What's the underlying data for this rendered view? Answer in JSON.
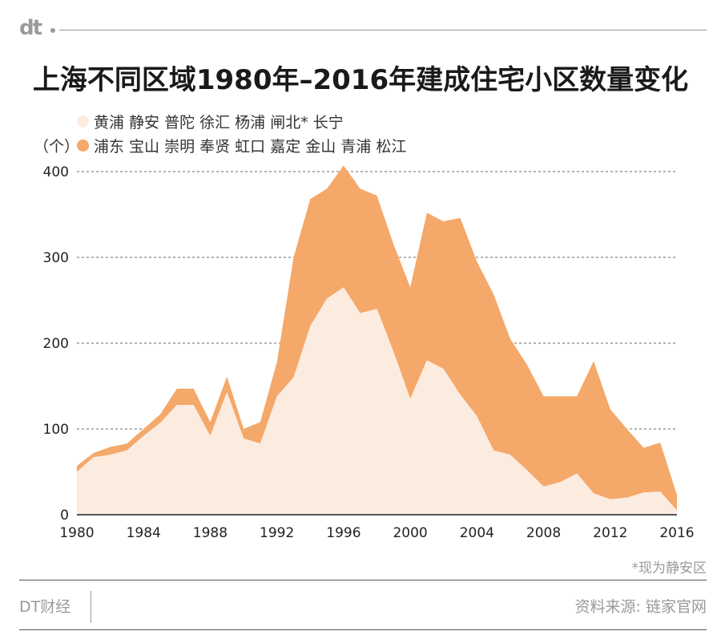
{
  "brand_logo": "dt",
  "title": "上海不同区域1980年–2016年建成住宅小区数量变化",
  "unit": "（个）",
  "footnote": "*现为静安区",
  "brand": "DT财经",
  "source": "资料来源: 链家官网",
  "colors": {
    "series1": "#fcebdf",
    "series2": "#f4a869",
    "grid": "#666666",
    "axis": "#222222"
  },
  "chart_data": {
    "type": "area",
    "stacked": true,
    "grid": "dashed-horizontal",
    "x": [
      1980,
      1981,
      1982,
      1983,
      1984,
      1985,
      1986,
      1987,
      1988,
      1989,
      1990,
      1991,
      1992,
      1993,
      1994,
      1995,
      1996,
      1997,
      1998,
      1999,
      2000,
      2001,
      2002,
      2003,
      2004,
      2005,
      2006,
      2007,
      2008,
      2009,
      2010,
      2011,
      2012,
      2013,
      2014,
      2015,
      2016
    ],
    "xlim": [
      1980,
      2016
    ],
    "xticks": [
      "1980",
      "1984",
      "1988",
      "1992",
      "1996",
      "2000",
      "2004",
      "2008",
      "2012",
      "2016"
    ],
    "ylim": [
      0,
      400
    ],
    "yticks": [
      "0",
      "100",
      "200",
      "300",
      "400"
    ],
    "series": [
      {
        "name": "黄浦 静安 普陀 徐汇 杨浦 闸北* 长宁",
        "values": [
          50,
          67,
          70,
          75,
          92,
          107,
          128,
          128,
          92,
          143,
          89,
          83,
          138,
          160,
          220,
          252,
          265,
          235,
          240,
          190,
          135,
          180,
          170,
          140,
          115,
          75,
          70,
          52,
          33,
          38,
          48,
          25,
          18,
          20,
          26,
          27,
          5
        ]
      },
      {
        "name": "浦东 宝山 崇明 奉贤 虹口 嘉定 金山 青浦 松江",
        "values": [
          7,
          5,
          9,
          8,
          8,
          10,
          19,
          19,
          16,
          18,
          11,
          25,
          40,
          140,
          148,
          128,
          142,
          145,
          132,
          125,
          130,
          172,
          172,
          206,
          180,
          182,
          135,
          123,
          105,
          100,
          90,
          154,
          105,
          80,
          52,
          57,
          18
        ]
      }
    ]
  }
}
